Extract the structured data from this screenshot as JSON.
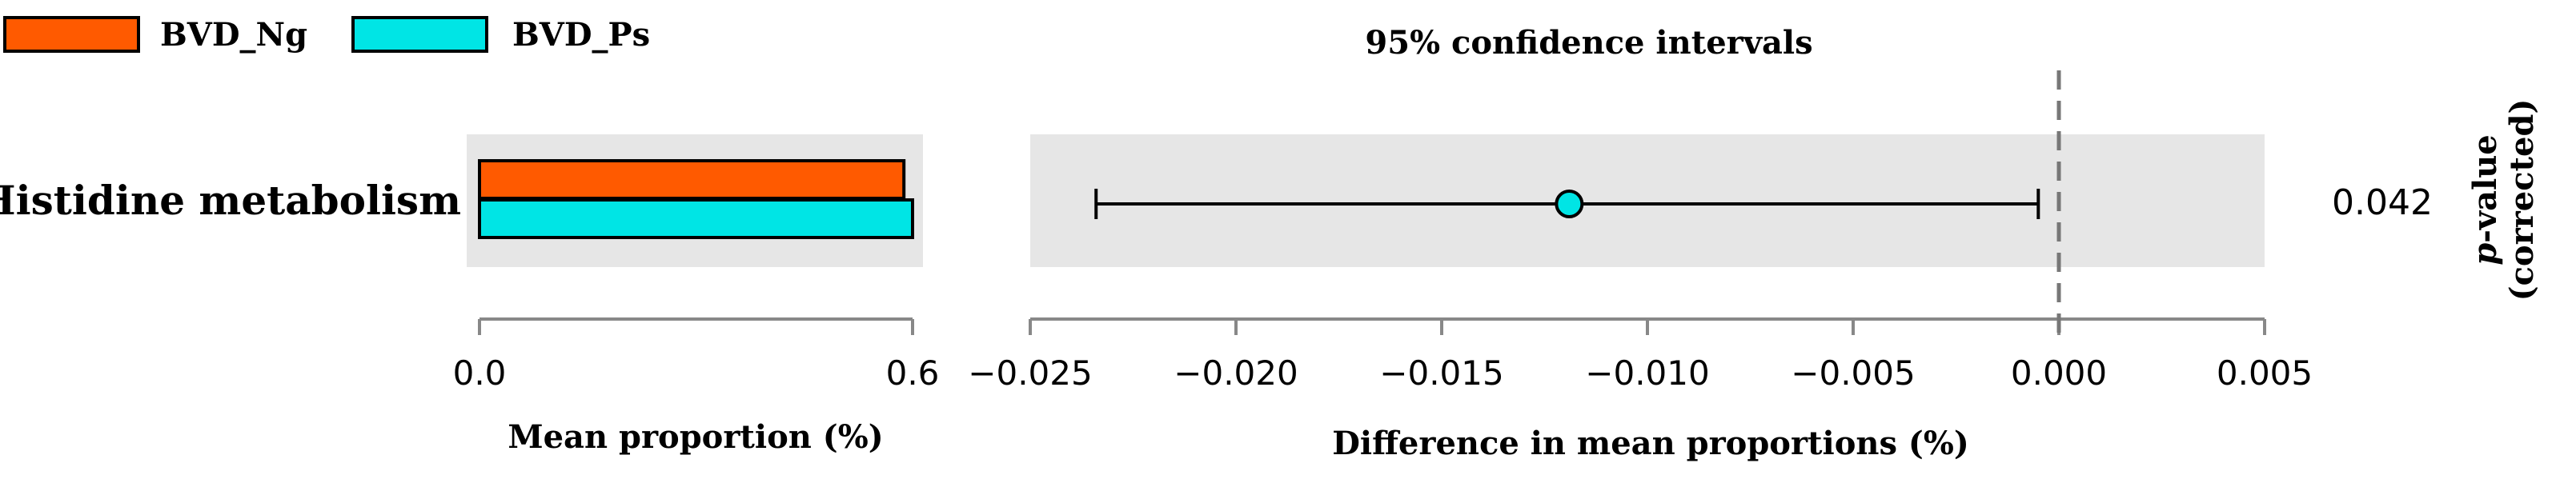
{
  "chart_data": {
    "type": "bar",
    "legend": {
      "placement": "top-left",
      "items": [
        {
          "name": "BVD_Ng",
          "color": "#ff5a00"
        },
        {
          "name": "BVD_Ps",
          "color": "#00e5e5"
        }
      ]
    },
    "categories": [
      "Histidine metabolism"
    ],
    "mean_proportion": {
      "series": [
        {
          "name": "BVD_Ng",
          "values": [
            0.588
          ]
        },
        {
          "name": "BVD_Ps",
          "values": [
            0.6
          ]
        }
      ],
      "xlabel": "Mean proportion (%)",
      "xlim": [
        0.0,
        0.6
      ],
      "ticks": [
        0.0,
        0.6
      ],
      "tick_labels": [
        "0.0",
        "0.6"
      ]
    },
    "difference": {
      "title": "95% confidence intervals",
      "xlabel": "Difference in mean proportions (%)",
      "xlim": [
        -0.025,
        0.005
      ],
      "ticks": [
        -0.025,
        -0.02,
        -0.015,
        -0.01,
        -0.005,
        0.0,
        0.005
      ],
      "tick_labels": [
        "−0.025",
        "−0.020",
        "−0.015",
        "−0.010",
        "−0.005",
        "0.000",
        "0.005"
      ],
      "points": [
        {
          "category": "Histidine metabolism",
          "estimate": -0.0119,
          "ci_low": -0.0234,
          "ci_high": -0.0005,
          "color": "#00e5e5"
        }
      ],
      "zero_line": 0.0
    },
    "p_values": {
      "label_italic": "p",
      "label_rest": "-value",
      "label_line2": "(corrected)",
      "values": [
        "0.042"
      ]
    },
    "grid": false
  }
}
